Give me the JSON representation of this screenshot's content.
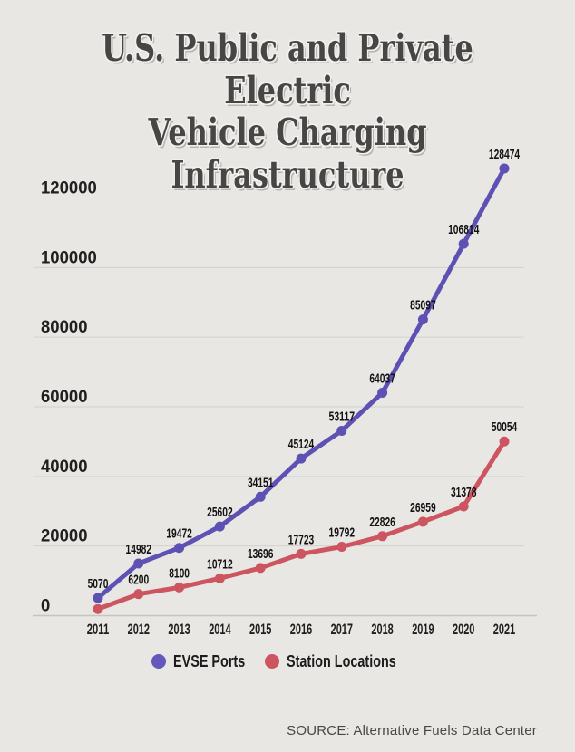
{
  "title": {
    "line1": "U.S. Public and Private Electric",
    "line2": "Vehicle Charging Infrastructure"
  },
  "source": "SOURCE: Alternative Fuels Data Center",
  "legend": {
    "items": [
      {
        "label": "EVSE Ports",
        "color": "#6458bd"
      },
      {
        "label": "Station Locations",
        "color": "#cd5560"
      }
    ]
  },
  "colors": {
    "background": "#e9e7e4",
    "grid": "#d3d1ce",
    "axis": "#c6c4c1",
    "tick_text": "#1f1f1f",
    "point_label_text": "#121212",
    "title_text": "#474645"
  },
  "chart_data": {
    "type": "line",
    "title": "U.S. Public and Private Electric Vehicle Charging Infrastructure",
    "xlabel": "",
    "ylabel": "",
    "x": [
      "2011",
      "2012",
      "2013",
      "2014",
      "2015",
      "2016",
      "2017",
      "2018",
      "2019",
      "2020",
      "2021"
    ],
    "ylim": [
      0,
      130000
    ],
    "yticks": [
      0,
      20000,
      40000,
      60000,
      80000,
      100000,
      120000
    ],
    "grid": true,
    "legend_position": "bottom",
    "series": [
      {
        "name": "EVSE Ports",
        "color": "#5d51b4",
        "values": [
          5070,
          14982,
          19472,
          25602,
          34151,
          45124,
          53117,
          64037,
          85097,
          106814,
          128474
        ],
        "point_labels": [
          "5070",
          "14982",
          "19472",
          "25602",
          "34151",
          "45124",
          "53117",
          "64037",
          "85097",
          "106814",
          "128474"
        ]
      },
      {
        "name": "Station Locations",
        "color": "#cd5560",
        "values": [
          1900,
          6200,
          8100,
          10712,
          13696,
          17723,
          19792,
          22826,
          26959,
          31378,
          50054
        ],
        "point_labels": [
          "",
          "6200",
          "8100",
          "10712",
          "13696",
          "17723",
          "19792",
          "22826",
          "26959",
          "31378",
          "50054"
        ]
      }
    ]
  }
}
